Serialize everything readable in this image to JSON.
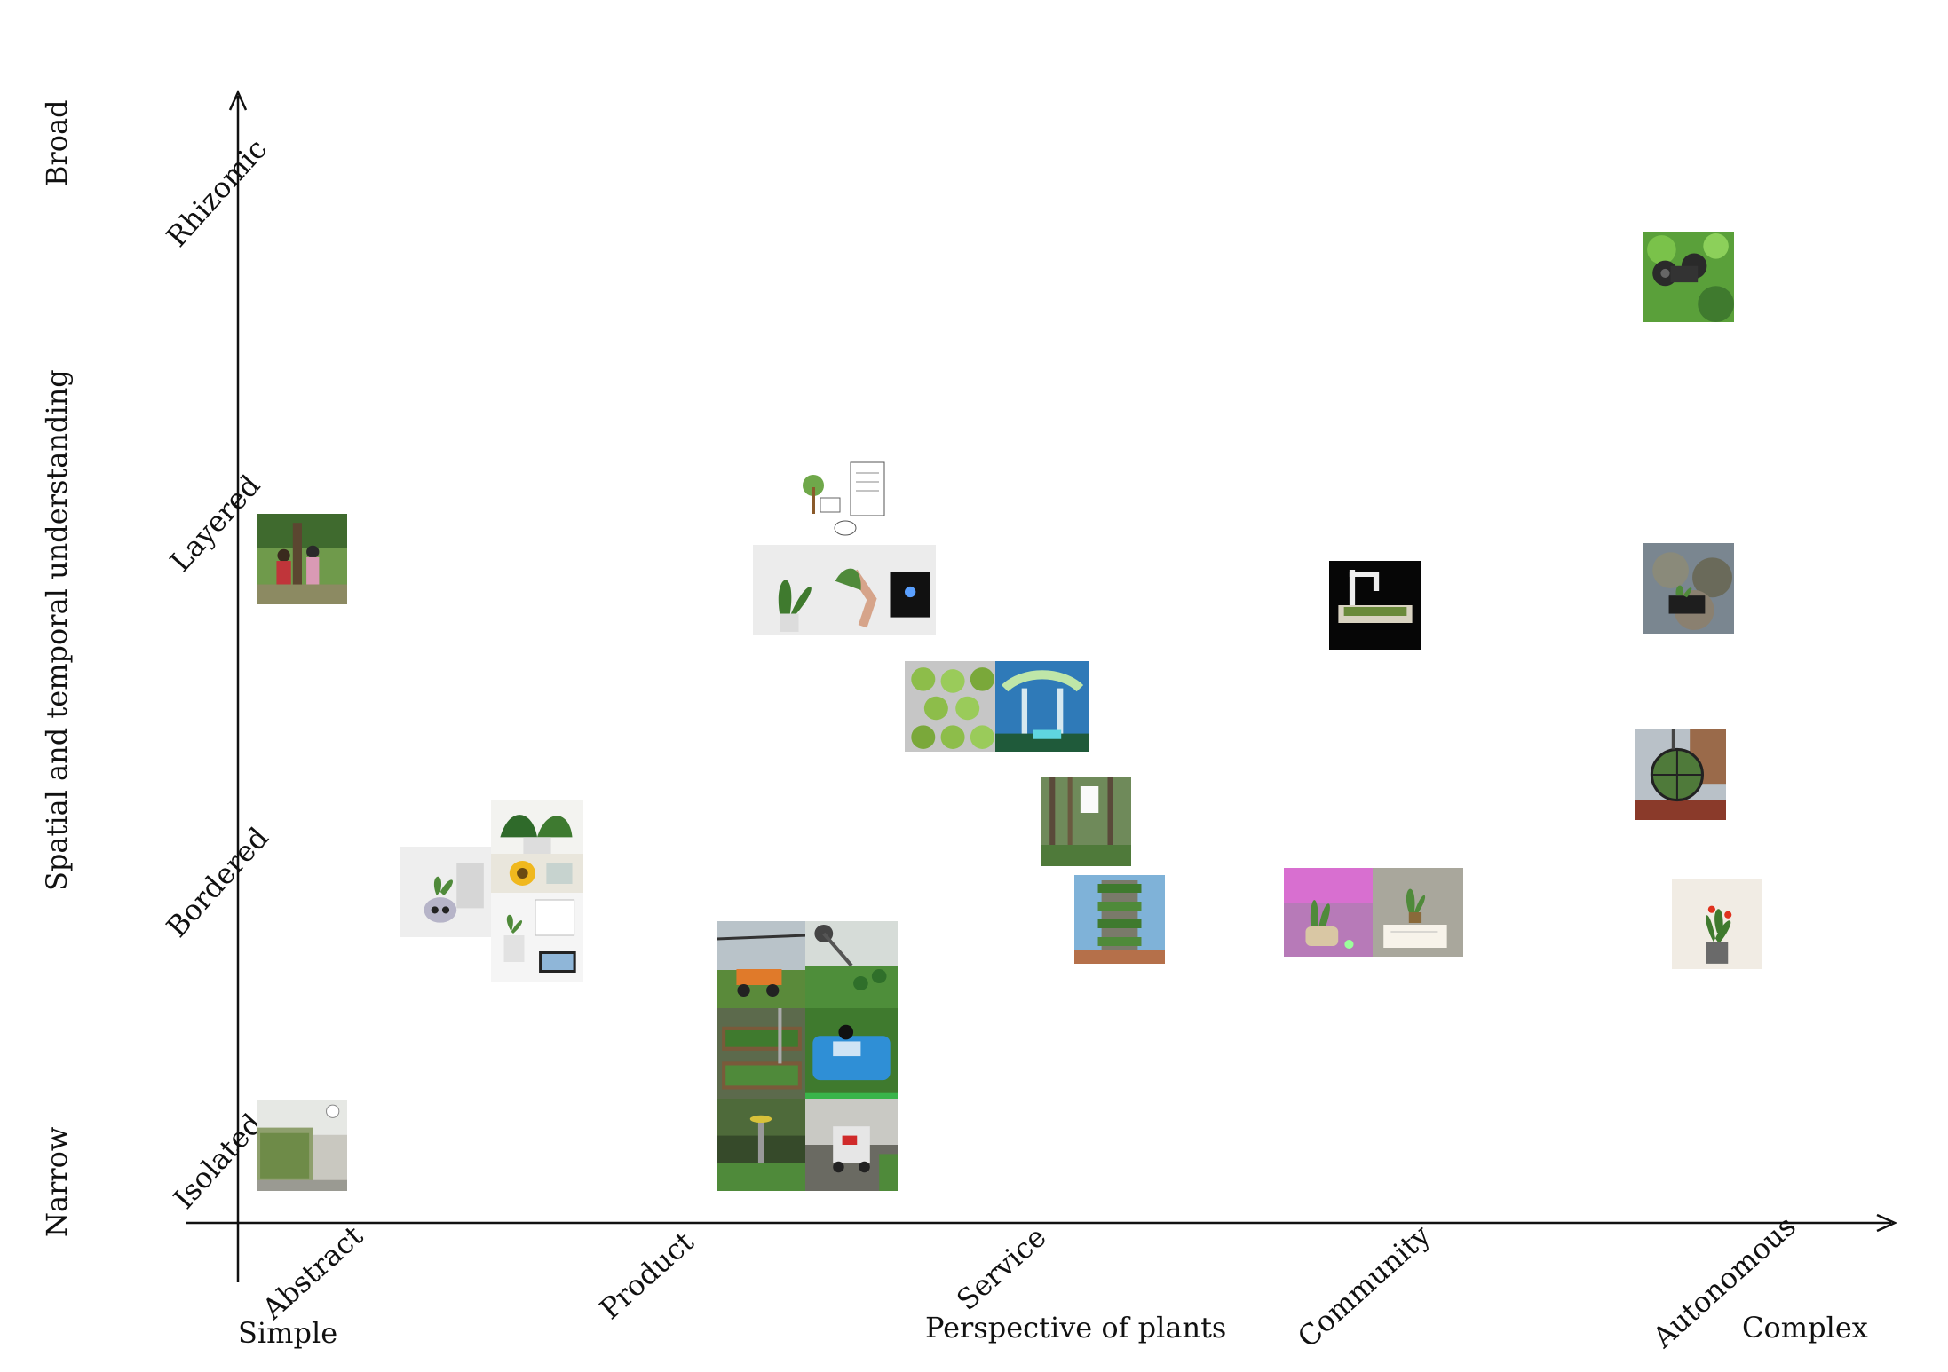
{
  "x_axis": {
    "ticks": [
      "Abstract",
      "Product",
      "Service",
      "Community",
      "Autonomous"
    ],
    "start_label": "Simple",
    "title": "Perspective of plants",
    "end_label": "Complex"
  },
  "y_axis": {
    "ticks": [
      "Isolated",
      "Bordered",
      "Layered",
      "Rhizomic"
    ],
    "start_label": "Narrow",
    "title": "Spatial and temporal understanding",
    "end_label": "Broad"
  },
  "colors": {
    "axis": "#111111",
    "foliage": "#4f8a3a",
    "sky": "#7fb2d8",
    "orange": "#e07a2a",
    "blue": "#2f8fd6",
    "pink": "#d86fd0"
  },
  "items": [
    {
      "name": "thumb-people-at-tree",
      "icon": "photo-people-tree"
    },
    {
      "name": "thumb-building-facade",
      "icon": "photo-green-building"
    },
    {
      "name": "thumb-pot-robot",
      "icon": "photo-plant-pot-robot"
    },
    {
      "name": "thumb-houseplant",
      "icon": "photo-houseplant"
    },
    {
      "name": "thumb-sunflower-display",
      "icon": "photo-sunflower"
    },
    {
      "name": "thumb-plant-laptop",
      "icon": "photo-plant-laptop"
    },
    {
      "name": "thumb-tree-sketch",
      "icon": "sketch-tree-devices"
    },
    {
      "name": "thumb-plant-touch",
      "icon": "photo-plant-touch"
    },
    {
      "name": "thumb-field-robot",
      "icon": "photo-field-robot"
    },
    {
      "name": "thumb-greenhouse-arm",
      "icon": "photo-greenhouse"
    },
    {
      "name": "thumb-raised-beds",
      "icon": "photo-garden-beds"
    },
    {
      "name": "thumb-blue-device",
      "icon": "photo-blue-device"
    },
    {
      "name": "thumb-garden-sensor",
      "icon": "photo-garden-sensor"
    },
    {
      "name": "thumb-cart-robot",
      "icon": "photo-cart-robot"
    },
    {
      "name": "thumb-green-pods",
      "icon": "photo-green-pods"
    },
    {
      "name": "thumb-canopy-structure",
      "icon": "photo-canopy"
    },
    {
      "name": "thumb-forest-sign",
      "icon": "photo-forest"
    },
    {
      "name": "thumb-vertical-forest",
      "icon": "photo-vertical-forest"
    },
    {
      "name": "thumb-robot-arm-plant",
      "icon": "photo-robot-arm"
    },
    {
      "name": "thumb-glowing-plant",
      "icon": "photo-glowing-plant"
    },
    {
      "name": "thumb-plant-card",
      "icon": "photo-plant-card"
    },
    {
      "name": "thumb-foliage-robot",
      "icon": "photo-foliage-robot"
    },
    {
      "name": "thumb-rock-robot",
      "icon": "photo-rocks"
    },
    {
      "name": "thumb-sphere-frame",
      "icon": "photo-sphere-frame"
    },
    {
      "name": "thumb-potted-flower",
      "icon": "photo-potted-flower"
    }
  ]
}
